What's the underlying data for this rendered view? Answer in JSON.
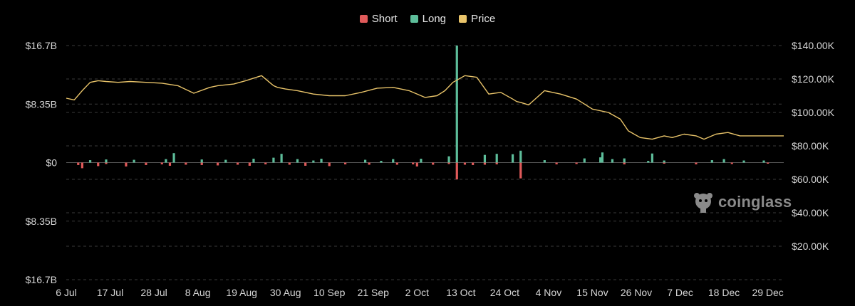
{
  "chart_data": {
    "type": "bar+line",
    "legend": [
      {
        "label": "Short",
        "color": "#e05a5a"
      },
      {
        "label": "Long",
        "color": "#5dbd9a"
      },
      {
        "label": "Price",
        "color": "#e9c46a"
      }
    ],
    "left_axis": {
      "ticks": [
        {
          "label": "$16.7B",
          "value": 16.7
        },
        {
          "label": "$8.35B",
          "value": 8.35
        },
        {
          "label": "$0",
          "value": 0
        },
        {
          "label": "$8.35B",
          "value": -8.35
        },
        {
          "label": "$16.7B",
          "value": -16.7
        }
      ],
      "ylim": [
        -16.7,
        16.7
      ],
      "unit": "B"
    },
    "right_axis": {
      "ticks": [
        "$140.00K",
        "$120.00K",
        "$100.00K",
        "$80.00K",
        "$60.00K",
        "$40.00K",
        "$20.00K"
      ],
      "tick_values": [
        140,
        120,
        100,
        80,
        60,
        40,
        20
      ],
      "ylim": [
        0,
        140
      ],
      "unit": "K"
    },
    "x_ticks": [
      "6 Jul",
      "17 Jul",
      "28 Jul",
      "8 Aug",
      "19 Aug",
      "30 Aug",
      "10 Sep",
      "21 Sep",
      "2 Oct",
      "13 Oct",
      "24 Oct",
      "4 Nov",
      "15 Nov",
      "26 Nov",
      "7 Dec",
      "18 Dec",
      "29 Dec"
    ],
    "x_days_total": 180,
    "grid": true,
    "legend_position": "top-center",
    "price_series": {
      "name": "Price",
      "day": [
        0,
        2,
        4,
        6,
        8,
        10,
        13,
        16,
        20,
        24,
        28,
        32,
        36,
        38,
        42,
        45,
        49,
        52,
        53,
        55,
        58,
        62,
        66,
        70,
        74,
        78,
        82,
        86,
        90,
        93,
        95,
        97,
        100,
        103,
        106,
        109,
        112,
        113,
        114,
        116,
        120,
        124,
        128,
        132,
        136,
        139,
        141,
        144,
        147,
        150,
        152,
        155,
        158,
        160,
        163,
        166,
        169,
        172,
        175,
        178,
        180
      ],
      "value": [
        108.5,
        107.5,
        113,
        118,
        119,
        118.5,
        118,
        118.5,
        118,
        117.5,
        116,
        111.5,
        115,
        116,
        117,
        119,
        122,
        116,
        115,
        114,
        113,
        111,
        110,
        110,
        112,
        114.5,
        115,
        113,
        109,
        110,
        113,
        118,
        122,
        121,
        111,
        112,
        108,
        106.5,
        106,
        104.5,
        113,
        111,
        108,
        102,
        100,
        96,
        89,
        85,
        84,
        86,
        85,
        87,
        86,
        84,
        87,
        88,
        86,
        86,
        86,
        86,
        86
      ]
    },
    "long_series": {
      "name": "Long",
      "day": [
        6,
        10,
        17,
        25,
        27,
        34,
        40,
        47,
        52,
        54,
        58,
        62,
        64,
        75,
        79,
        82,
        89,
        96,
        105,
        108,
        112,
        114,
        120,
        130,
        134,
        134.5,
        137,
        140,
        146,
        147,
        150,
        162,
        165,
        170,
        175
      ],
      "value": [
        0.35,
        0.45,
        0.4,
        0.5,
        1.35,
        0.45,
        0.4,
        0.55,
        0.7,
        1.25,
        0.5,
        0.3,
        0.55,
        0.4,
        0.25,
        0.5,
        0.55,
        0.9,
        1.1,
        1.25,
        1.2,
        1.7,
        0.35,
        0.6,
        0.75,
        1.45,
        0.5,
        0.6,
        0.25,
        1.3,
        0.3,
        0.35,
        0.5,
        0.3,
        0.3
      ]
    },
    "short_series": {
      "name": "Short",
      "day": [
        3,
        4,
        8,
        10,
        15,
        20,
        24,
        26,
        30,
        34,
        38,
        43,
        46,
        50,
        56,
        60,
        66,
        70,
        76,
        83,
        87,
        88,
        92,
        96,
        100,
        102,
        105,
        108,
        114,
        123,
        128,
        140,
        150,
        158,
        167,
        176
      ],
      "value": [
        -0.35,
        -0.8,
        -0.5,
        -0.2,
        -0.55,
        -0.35,
        -0.25,
        -0.45,
        -0.3,
        -0.35,
        -0.4,
        -0.3,
        -0.45,
        -0.25,
        -0.3,
        -0.45,
        -0.5,
        -0.25,
        -0.3,
        -0.3,
        -0.25,
        -0.55,
        -0.3,
        -0.2,
        -0.3,
        -0.35,
        -0.3,
        -0.25,
        -2.25,
        -0.25,
        -0.2,
        -0.25,
        -0.15,
        -0.25,
        -0.2,
        -0.15
      ]
    }
  },
  "watermark": {
    "text": "coinglass",
    "icon": "coinglass-logo-icon"
  }
}
